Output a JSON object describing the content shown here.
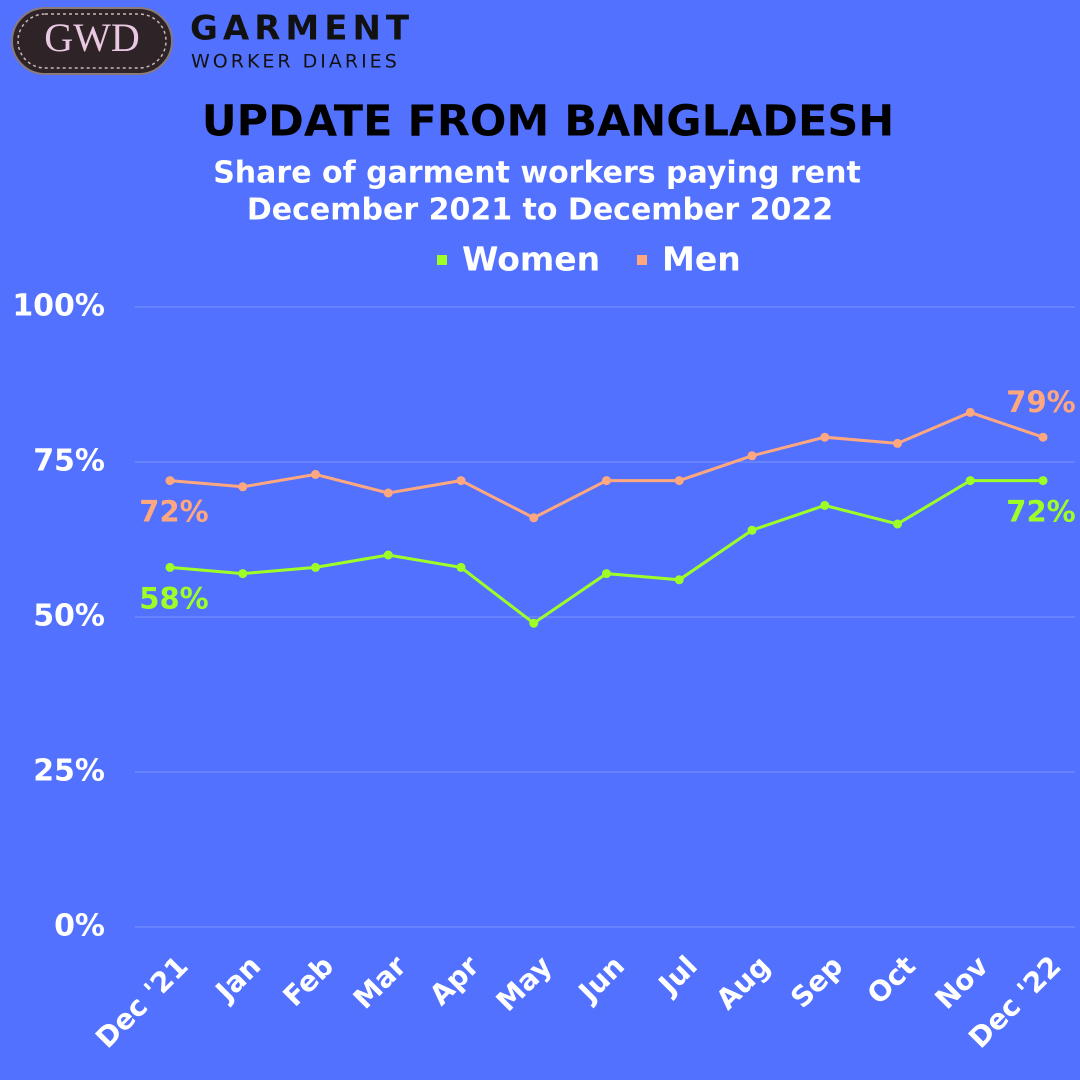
{
  "logo": {
    "badge": "GWD",
    "name": "GARMENT",
    "tagline": "WORKER DIARIES"
  },
  "chart_data": {
    "type": "line",
    "title": "UPDATE FROM BANGLADESH",
    "subtitle": [
      "Share of garment workers paying rent",
      "December 2021 to December 2022"
    ],
    "categories": [
      "Dec '21",
      "Jan",
      "Feb",
      "Mar",
      "Apr",
      "May",
      "Jun",
      "Jul",
      "Aug",
      "Sep",
      "Oct",
      "Nov",
      "Dec '22"
    ],
    "series": [
      {
        "name": "Women",
        "color": "#9dff26",
        "values": [
          58,
          57,
          58,
          60,
          58,
          49,
          57,
          56,
          64,
          68,
          65,
          72,
          72
        ],
        "value_labels": [
          "58%",
          null,
          null,
          null,
          null,
          null,
          null,
          null,
          null,
          null,
          null,
          null,
          "72%"
        ]
      },
      {
        "name": "Men",
        "color": "#ffa77e",
        "values": [
          72,
          71,
          73,
          70,
          72,
          66,
          72,
          72,
          76,
          79,
          78,
          83,
          79
        ],
        "value_labels": [
          "72%",
          null,
          null,
          null,
          null,
          null,
          null,
          null,
          null,
          null,
          null,
          null,
          "79%"
        ]
      }
    ],
    "ylim": [
      0,
      100
    ],
    "yticks": [
      {
        "value": 0,
        "label": "0%"
      },
      {
        "value": 25,
        "label": "25%"
      },
      {
        "value": 50,
        "label": "50%"
      },
      {
        "value": 75,
        "label": "75%"
      },
      {
        "value": 100,
        "label": "100%"
      }
    ],
    "grid": true
  }
}
